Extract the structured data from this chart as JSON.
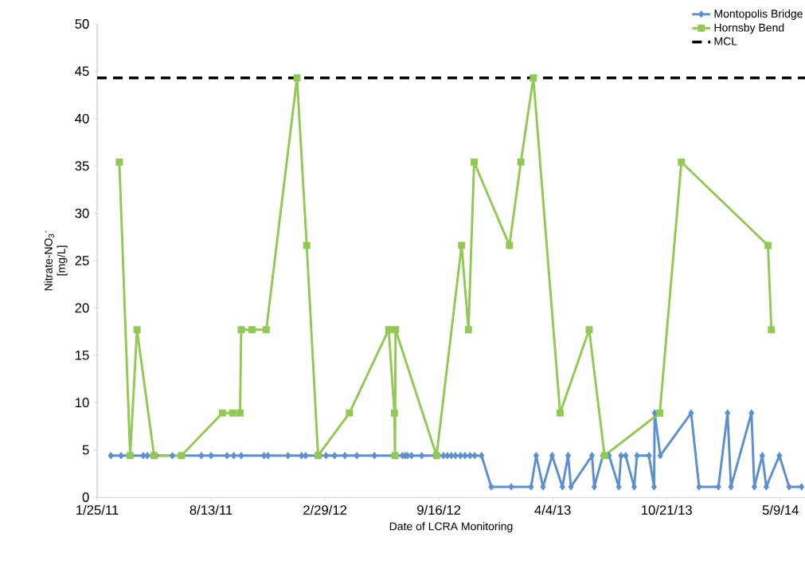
{
  "chart_data": {
    "type": "line",
    "xlabel": "Date of LCRA Monitoring",
    "ylabel": "Nitrate-NO$_{3}$$^{-}$ [mg/L]",
    "xlim": [
      "2011-01-25",
      "2014-06-21"
    ],
    "xticks": [
      {
        "value": "2011-01-25",
        "label": "1/25/11"
      },
      {
        "value": "2011-08-13",
        "label": "8/13/11"
      },
      {
        "value": "2012-02-29",
        "label": "2/29/12"
      },
      {
        "value": "2012-09-16",
        "label": "9/16/12"
      },
      {
        "value": "2013-04-04",
        "label": "4/4/13"
      },
      {
        "value": "2013-10-21",
        "label": "10/21/13"
      },
      {
        "value": "2014-05-09",
        "label": "5/9/14"
      }
    ],
    "ylim": [
      0,
      50
    ],
    "yticks": [
      0,
      5,
      10,
      15,
      20,
      25,
      30,
      35,
      40,
      45,
      50
    ],
    "legend": "top right",
    "grid": false,
    "line_style": "solid",
    "series": [
      {
        "name": "Montopolis Bridge",
        "color": "#5b8fd0",
        "marker": "diamond",
        "x": [
          "2011-02-18",
          "2011-03-08",
          "2011-04-16",
          "2011-04-23",
          "2011-05-09",
          "2011-06-06",
          "2011-07-27",
          "2011-08-13",
          "2011-09-10",
          "2011-09-22",
          "2011-10-05",
          "2011-11-14",
          "2011-11-21",
          "2011-12-26",
          "2012-01-19",
          "2012-01-26",
          "2012-03-02",
          "2012-03-17",
          "2012-04-04",
          "2012-04-25",
          "2012-05-26",
          "2012-07-14",
          "2012-07-19",
          "2012-07-23",
          "2012-07-30",
          "2012-08-17",
          "2012-09-24",
          "2012-10-01",
          "2012-10-08",
          "2012-10-15",
          "2012-10-24",
          "2012-11-01",
          "2012-11-10",
          "2012-11-18",
          "2012-11-30",
          "2012-12-17",
          "2013-01-21",
          "2013-02-25",
          "2013-03-06",
          "2013-03-18",
          "2013-04-03",
          "2013-04-21",
          "2013-05-01",
          "2013-05-06",
          "2013-06-12",
          "2013-06-16",
          "2013-07-01",
          "2013-07-12",
          "2013-07-29",
          "2013-08-02",
          "2013-08-10",
          "2013-08-25",
          "2013-08-30",
          "2013-09-20",
          "2013-09-29",
          "2013-09-30",
          "2013-10-10",
          "2013-12-03",
          "2013-12-17",
          "2014-01-20",
          "2014-02-05",
          "2014-02-11",
          "2014-03-19",
          "2014-03-24",
          "2014-04-07",
          "2014-04-14",
          "2014-05-07",
          "2014-05-24",
          "2014-06-15"
        ],
        "values": [
          4.4,
          4.4,
          4.4,
          4.4,
          4.4,
          4.4,
          4.4,
          4.4,
          4.4,
          4.4,
          4.4,
          4.4,
          4.4,
          4.4,
          4.4,
          4.4,
          4.4,
          4.4,
          4.4,
          4.4,
          4.4,
          4.4,
          4.4,
          4.4,
          4.4,
          4.4,
          4.4,
          4.4,
          4.4,
          4.4,
          4.4,
          4.4,
          4.4,
          4.4,
          4.4,
          1.1,
          1.1,
          1.1,
          4.4,
          1.1,
          4.4,
          1.1,
          4.4,
          1.1,
          4.4,
          1.1,
          4.4,
          4.4,
          1.1,
          4.4,
          4.4,
          1.1,
          4.4,
          4.4,
          1.1,
          8.9,
          4.4,
          8.9,
          1.1,
          1.1,
          8.9,
          1.1,
          8.9,
          1.1,
          4.4,
          1.1,
          4.4,
          1.1,
          1.1
        ]
      },
      {
        "name": "Hornsby Bend",
        "color": "#92c954",
        "marker": "square",
        "x": [
          "2011-03-05",
          "2011-03-24",
          "2011-04-05",
          "2011-05-05",
          "2011-06-22",
          "2011-09-02",
          "2011-09-20",
          "2011-10-03",
          "2011-10-05",
          "2011-10-24",
          "2011-11-18",
          "2012-01-11",
          "2012-01-28",
          "2012-02-17",
          "2012-04-12",
          "2012-06-20",
          "2012-06-30",
          "2012-07-01",
          "2012-07-02",
          "2012-09-12",
          "2012-10-26",
          "2012-11-07",
          "2012-11-17",
          "2013-01-18",
          "2013-02-07",
          "2013-03-01",
          "2013-04-17",
          "2013-06-07",
          "2013-07-04",
          "2013-10-09",
          "2013-11-16",
          "2014-04-17",
          "2014-04-23"
        ],
        "values": [
          35.4,
          4.4,
          17.7,
          4.4,
          4.4,
          8.9,
          8.9,
          8.9,
          17.7,
          17.7,
          17.7,
          44.3,
          26.6,
          4.4,
          8.9,
          17.7,
          8.9,
          4.4,
          17.7,
          4.4,
          26.6,
          17.7,
          35.4,
          26.6,
          35.4,
          44.3,
          8.9,
          17.7,
          4.4,
          8.9,
          35.4,
          26.6,
          17.7
        ]
      }
    ],
    "ref_lines": [
      {
        "axis": "y",
        "value": 44.3,
        "label": "MCL",
        "color": "#000000",
        "line_style": "dashed"
      }
    ]
  }
}
